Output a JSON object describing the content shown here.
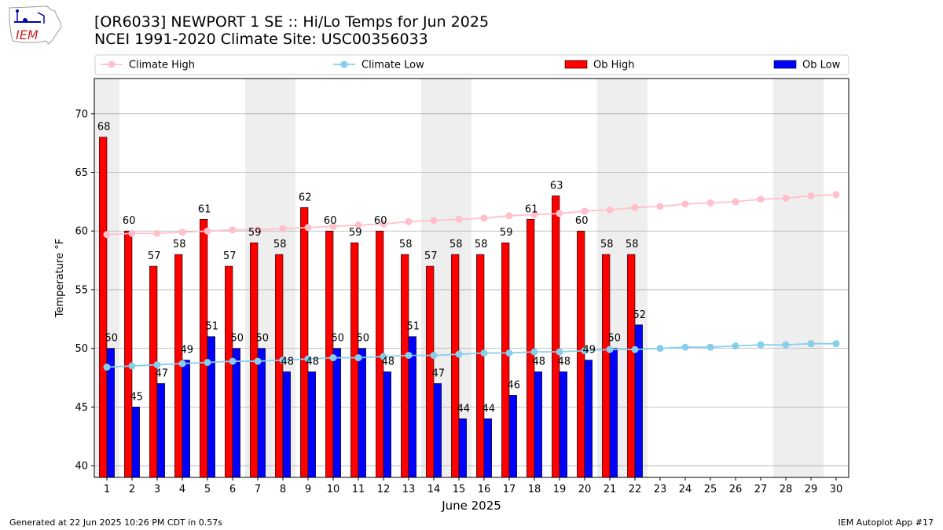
{
  "header": {
    "title_line1": "[OR6033] NEWPORT 1 SE :: Hi/Lo Temps for Jun 2025",
    "title_line2": "NCEI 1991-2020 Climate Site: USC00356033",
    "logo_text": "IEM"
  },
  "footer": {
    "generated": "Generated at 22 Jun 2025 10:26 PM CDT in 0.57s",
    "app": "IEM Autoplot App #17"
  },
  "colors": {
    "ob_high": "#ff0000",
    "ob_low": "#0000ff",
    "climate_high": "#ffc0cb",
    "climate_low": "#87ceeb",
    "weekend_band": "#eeeeee",
    "grid": "#b0b0b0"
  },
  "chart_data": {
    "type": "bar",
    "xlabel": "June 2025",
    "ylabel": "Temperature °F",
    "xlim": [
      0.5,
      30.5
    ],
    "ylim": [
      39,
      73
    ],
    "yticks": [
      40,
      45,
      50,
      55,
      60,
      65,
      70
    ],
    "grid": "horizontal",
    "legend_placement": "top",
    "weekend_days": [
      1,
      7,
      8,
      14,
      15,
      21,
      22,
      28,
      29
    ],
    "days": [
      1,
      2,
      3,
      4,
      5,
      6,
      7,
      8,
      9,
      10,
      11,
      12,
      13,
      14,
      15,
      16,
      17,
      18,
      19,
      20,
      21,
      22,
      23,
      24,
      25,
      26,
      27,
      28,
      29,
      30
    ],
    "series": [
      {
        "name": "Climate High",
        "kind": "line",
        "values": [
          59.7,
          59.8,
          59.8,
          59.9,
          60.0,
          60.1,
          60.1,
          60.2,
          60.3,
          60.4,
          60.5,
          60.6,
          60.8,
          60.9,
          61.0,
          61.1,
          61.3,
          61.4,
          61.5,
          61.7,
          61.8,
          62.0,
          62.1,
          62.3,
          62.4,
          62.5,
          62.7,
          62.8,
          63.0,
          63.1
        ]
      },
      {
        "name": "Climate Low",
        "kind": "line",
        "values": [
          48.4,
          48.5,
          48.6,
          48.7,
          48.8,
          48.9,
          48.9,
          49.0,
          49.1,
          49.2,
          49.2,
          49.3,
          49.4,
          49.4,
          49.5,
          49.6,
          49.6,
          49.7,
          49.7,
          49.8,
          49.9,
          49.9,
          50.0,
          50.1,
          50.1,
          50.2,
          50.3,
          50.3,
          50.4,
          50.4
        ]
      },
      {
        "name": "Ob High",
        "kind": "bar",
        "values": [
          68,
          60,
          57,
          58,
          61,
          57,
          59,
          58,
          62,
          60,
          59,
          60,
          58,
          57,
          58,
          58,
          59,
          61,
          63,
          60,
          58,
          58
        ]
      },
      {
        "name": "Ob Low",
        "kind": "bar",
        "values": [
          50,
          45,
          47,
          49,
          51,
          50,
          50,
          48,
          48,
          50,
          50,
          48,
          51,
          47,
          44,
          44,
          46,
          48,
          48,
          49,
          50,
          52
        ]
      }
    ]
  }
}
